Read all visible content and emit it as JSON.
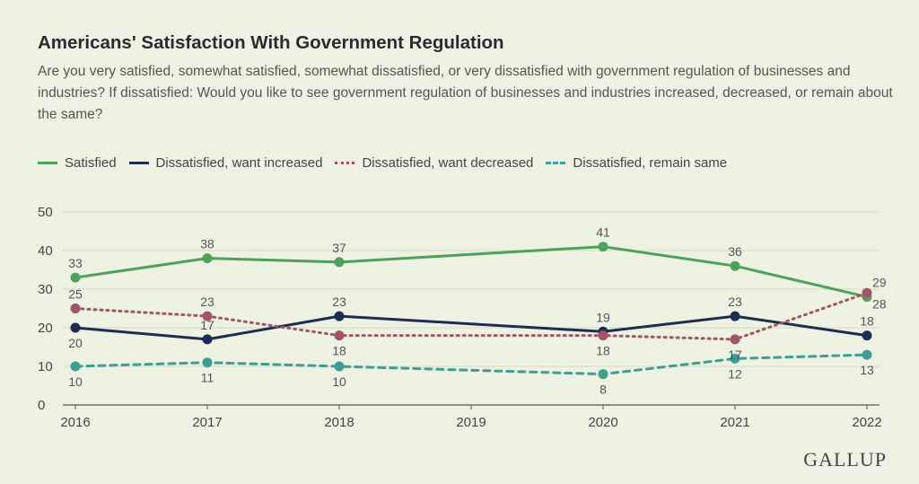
{
  "header": {
    "title": "Americans' Satisfaction With Government Regulation",
    "subtitle": "Are you very satisfied, somewhat satisfied, somewhat dissatisfied, or very dissatisfied with government regulation of businesses and industries? If dissatisfied: Would you like to see government regulation of businesses and industries increased, decreased, or remain about the same?"
  },
  "brand": "GALLUP",
  "colors": {
    "background": "#eef2e3",
    "satisfied": "#4ea15a",
    "want_increased": "#1d2d52",
    "want_decreased": "#a15468",
    "remain_same": "#3f9e94",
    "grid": "#d4d8c6"
  },
  "chart_data": {
    "type": "line",
    "title": "Americans' Satisfaction With Government Regulation",
    "xlabel": "",
    "ylabel": "",
    "x_ticks": [
      "2016",
      "2017",
      "2018",
      "2019",
      "2020",
      "2021",
      "2022"
    ],
    "y_ticks": [
      "0",
      "10",
      "20",
      "30",
      "40",
      "50"
    ],
    "ylim": [
      0,
      50
    ],
    "xlim": [
      2016,
      2022
    ],
    "grid": true,
    "legend_position": "top-left",
    "series": [
      {
        "name": "Satisfied",
        "style": "solid",
        "color": "#4ea15a",
        "x": [
          2016,
          2017,
          2018,
          2020,
          2021,
          2022
        ],
        "values": [
          33,
          38,
          37,
          41,
          36,
          28
        ]
      },
      {
        "name": "Dissatisfied, want increased",
        "style": "solid",
        "color": "#1d2d52",
        "x": [
          2016,
          2017,
          2018,
          2020,
          2021,
          2022
        ],
        "values": [
          20,
          17,
          23,
          19,
          23,
          18
        ]
      },
      {
        "name": "Dissatisfied, want decreased",
        "style": "dotted",
        "color": "#a15468",
        "x": [
          2016,
          2017,
          2018,
          2020,
          2021,
          2022
        ],
        "values": [
          25,
          23,
          18,
          18,
          17,
          29
        ]
      },
      {
        "name": "Dissatisfied, remain same",
        "style": "dashed",
        "color": "#3f9e94",
        "x": [
          2016,
          2017,
          2018,
          2020,
          2021,
          2022
        ],
        "values": [
          10,
          11,
          10,
          8,
          12,
          13
        ]
      }
    ],
    "data_labels": [
      {
        "series": 0,
        "x": 2016,
        "text": "33",
        "pos": "above"
      },
      {
        "series": 0,
        "x": 2017,
        "text": "38",
        "pos": "above"
      },
      {
        "series": 0,
        "x": 2018,
        "text": "37",
        "pos": "above"
      },
      {
        "series": 0,
        "x": 2020,
        "text": "41",
        "pos": "above"
      },
      {
        "series": 0,
        "x": 2021,
        "text": "36",
        "pos": "above"
      },
      {
        "series": 0,
        "x": 2022,
        "text": "28",
        "pos": "right-below"
      },
      {
        "series": 1,
        "x": 2016,
        "text": "20",
        "pos": "below"
      },
      {
        "series": 1,
        "x": 2017,
        "text": "17",
        "pos": "above"
      },
      {
        "series": 1,
        "x": 2018,
        "text": "23",
        "pos": "above"
      },
      {
        "series": 1,
        "x": 2020,
        "text": "19",
        "pos": "above"
      },
      {
        "series": 1,
        "x": 2021,
        "text": "23",
        "pos": "above"
      },
      {
        "series": 1,
        "x": 2022,
        "text": "18",
        "pos": "above"
      },
      {
        "series": 2,
        "x": 2016,
        "text": "25",
        "pos": "above"
      },
      {
        "series": 2,
        "x": 2017,
        "text": "23",
        "pos": "above"
      },
      {
        "series": 2,
        "x": 2018,
        "text": "18",
        "pos": "below"
      },
      {
        "series": 2,
        "x": 2020,
        "text": "18",
        "pos": "below"
      },
      {
        "series": 2,
        "x": 2021,
        "text": "17",
        "pos": "below"
      },
      {
        "series": 2,
        "x": 2022,
        "text": "29",
        "pos": "right-above"
      },
      {
        "series": 3,
        "x": 2016,
        "text": "10",
        "pos": "below"
      },
      {
        "series": 3,
        "x": 2017,
        "text": "11",
        "pos": "below"
      },
      {
        "series": 3,
        "x": 2018,
        "text": "10",
        "pos": "below"
      },
      {
        "series": 3,
        "x": 2020,
        "text": "8",
        "pos": "below"
      },
      {
        "series": 3,
        "x": 2021,
        "text": "12",
        "pos": "below"
      },
      {
        "series": 3,
        "x": 2022,
        "text": "13",
        "pos": "below"
      }
    ]
  }
}
